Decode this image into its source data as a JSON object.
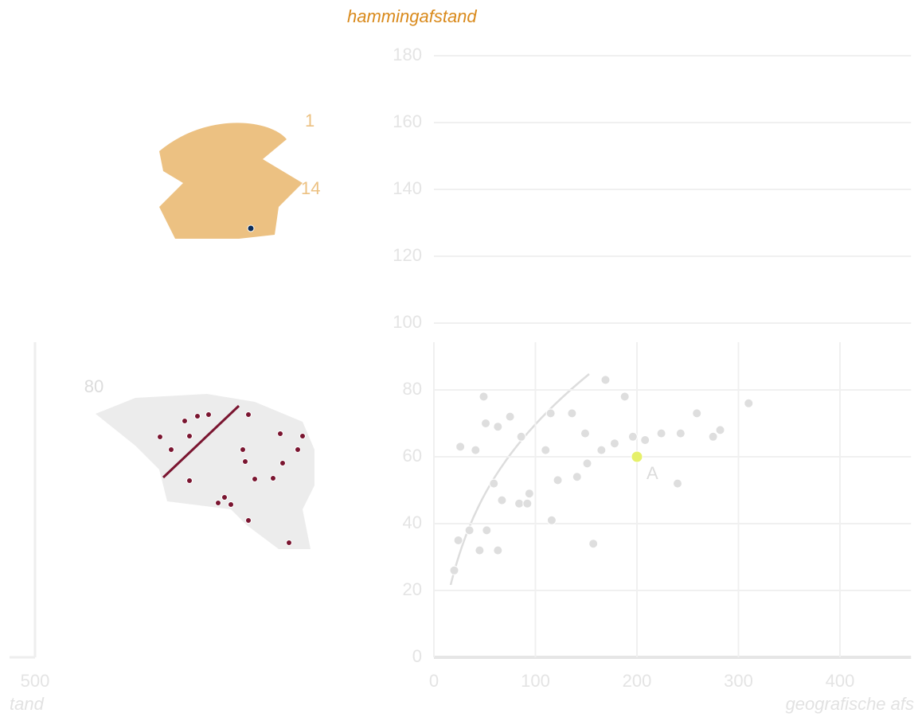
{
  "chart_data": {
    "type": "scatter",
    "y_label": "hammingafstand",
    "x_label": "geografische afs",
    "x": [
      20,
      24,
      35,
      45,
      52,
      63,
      59,
      67,
      84,
      94,
      92,
      116,
      122,
      141,
      151,
      157,
      26,
      41,
      51,
      63,
      75,
      86,
      49,
      110,
      115,
      136,
      149,
      165,
      178,
      196,
      208,
      224,
      243,
      240,
      259,
      275,
      282,
      310,
      169,
      188,
      200
    ],
    "y": [
      26,
      35,
      38,
      32,
      38,
      32,
      52,
      47,
      46,
      49,
      46,
      41,
      53,
      54,
      58,
      34,
      63,
      62,
      70,
      69,
      72,
      66,
      78,
      62,
      73,
      73,
      67,
      62,
      64,
      66,
      65,
      67,
      67,
      52,
      73,
      66,
      68,
      76,
      83,
      78,
      60
    ],
    "color": "#dedede",
    "highlight": {
      "index": 40,
      "label": "A",
      "color": "#e6f06a"
    },
    "xlim": [
      0,
      470
    ],
    "ylim": [
      0,
      180
    ],
    "xticks": [
      0,
      100,
      200,
      300,
      400
    ],
    "yticks": [
      0,
      20,
      40,
      60,
      80,
      100,
      120,
      140,
      160,
      180
    ],
    "grid": true
  },
  "background_panel": {
    "labels": [
      "1",
      "14",
      "80",
      "500",
      "tand"
    ]
  }
}
